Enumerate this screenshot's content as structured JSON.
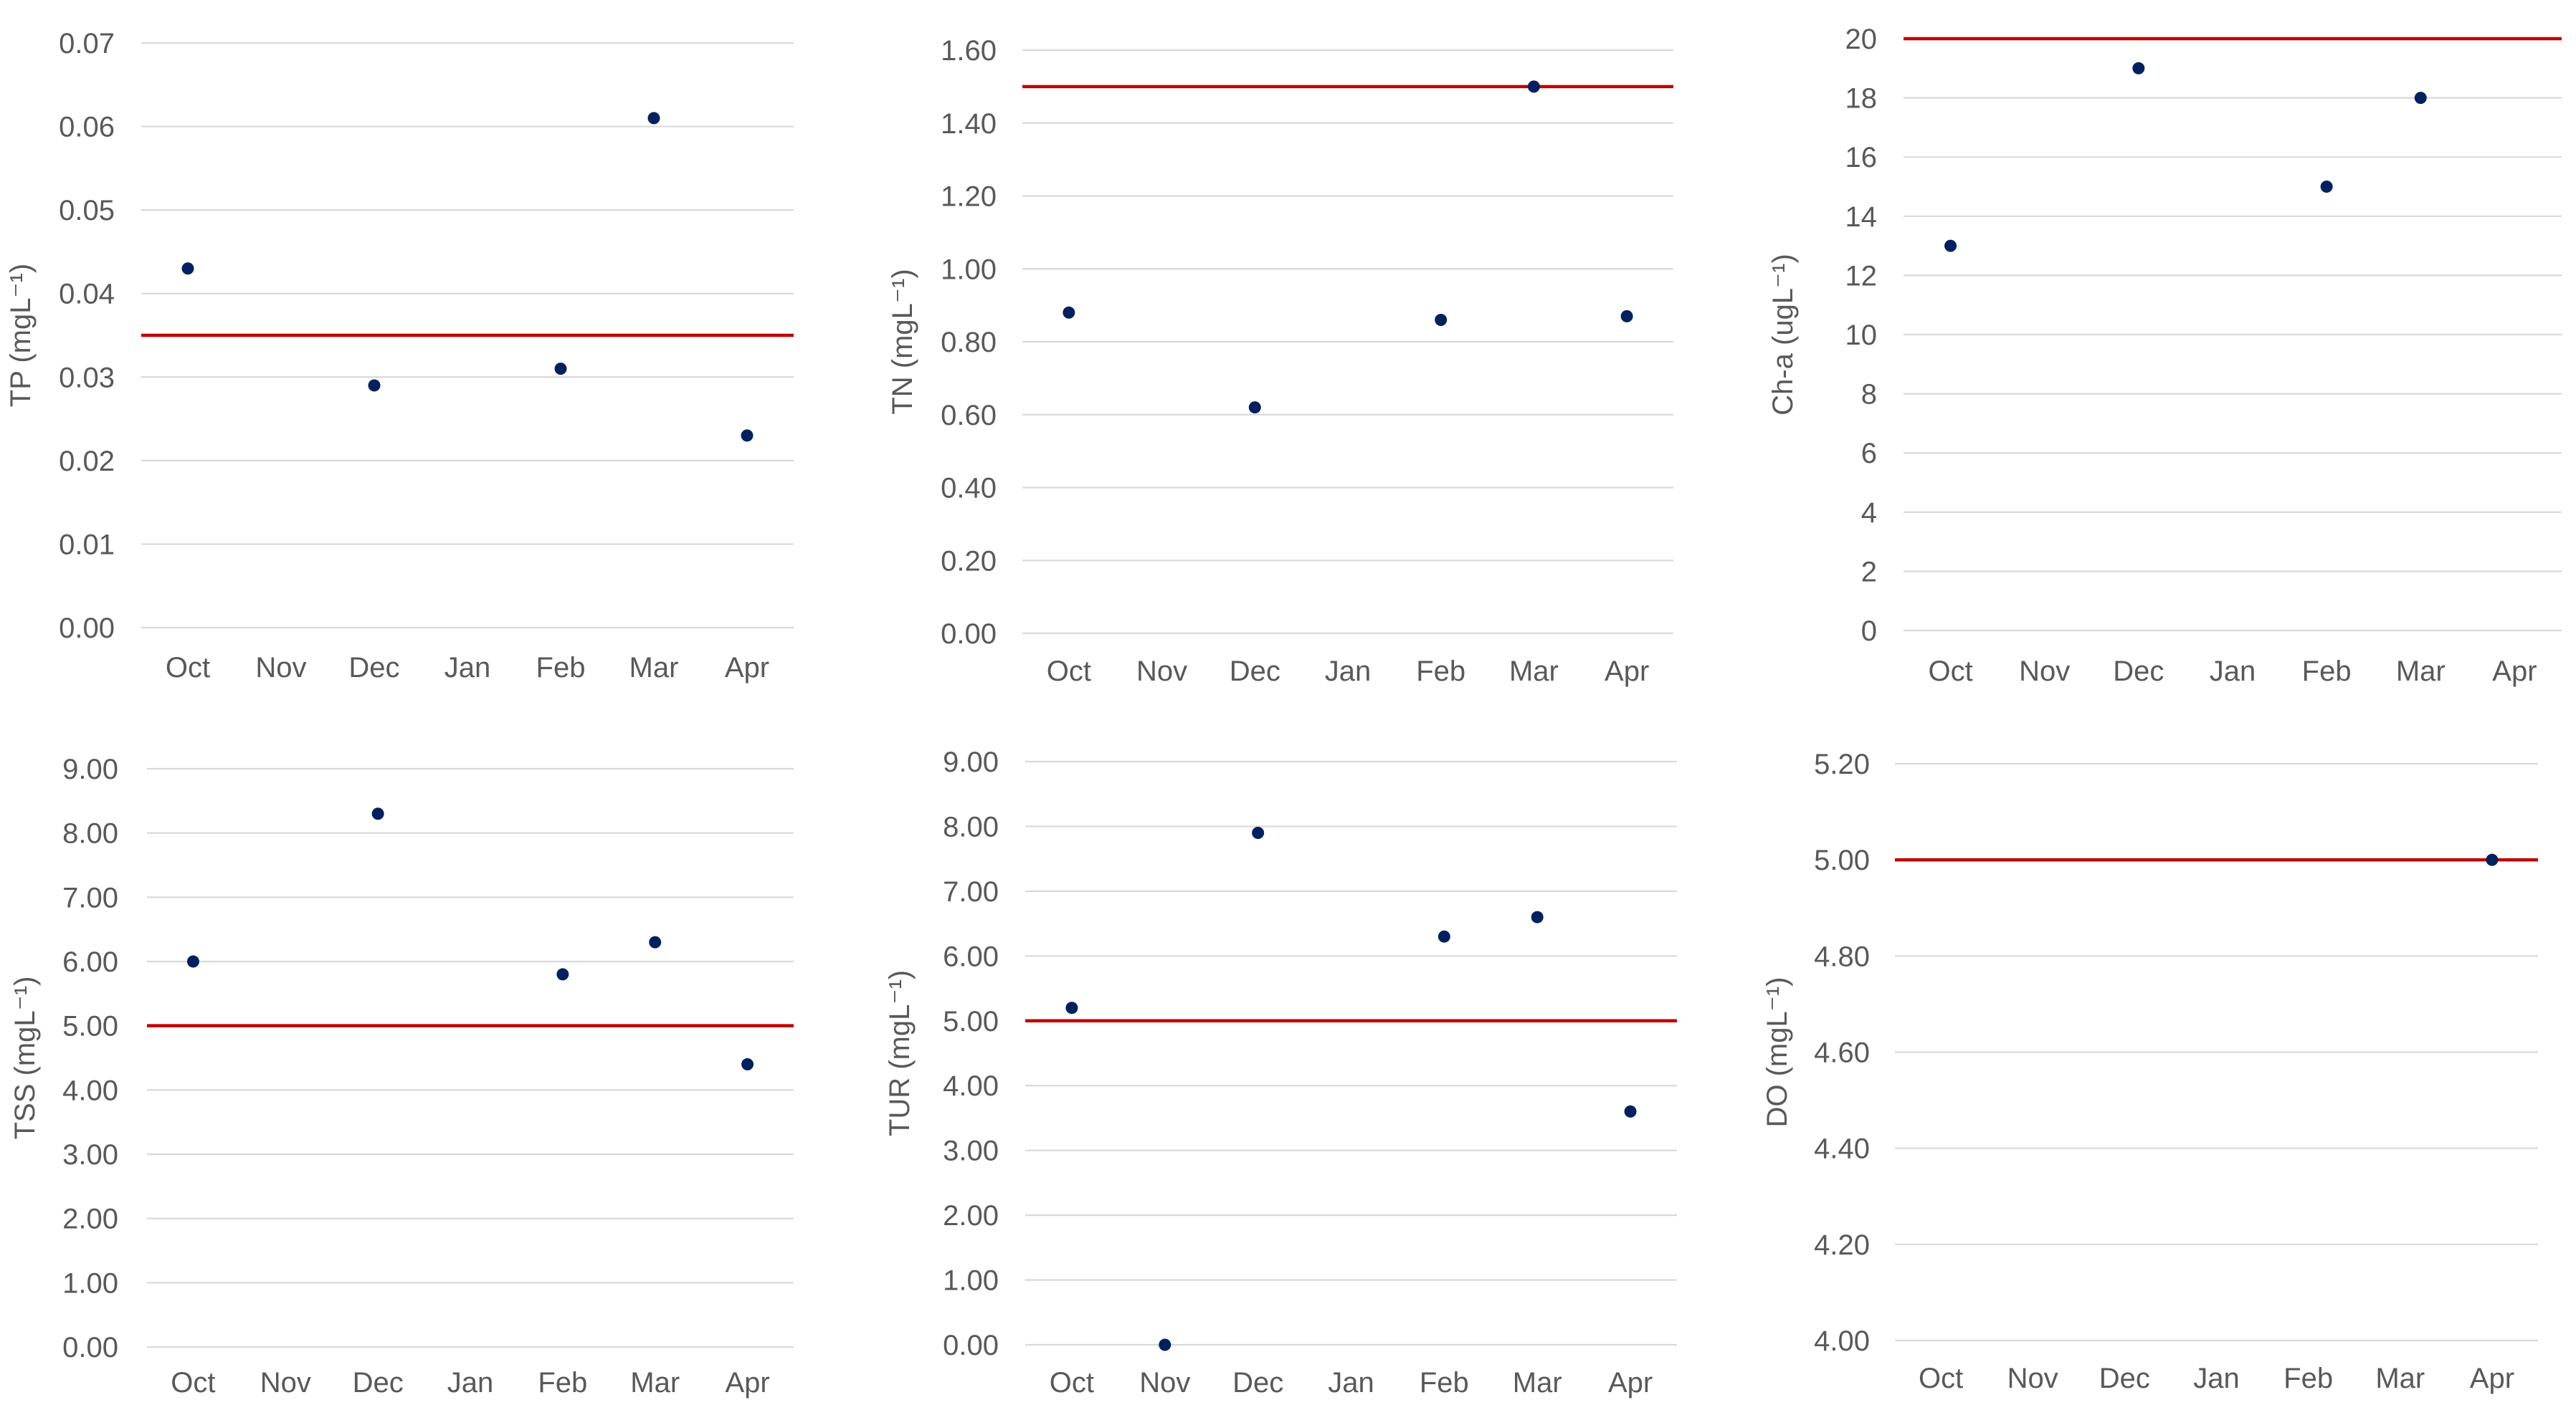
{
  "chart_data": [
    {
      "type": "scatter",
      "ylabel": "TP (mgL⁻¹)",
      "categories": [
        "Oct",
        "Nov",
        "Dec",
        "Jan",
        "Feb",
        "Mar",
        "Apr"
      ],
      "yticks": [
        "0.00",
        "0.01",
        "0.02",
        "0.03",
        "0.04",
        "0.05",
        "0.06",
        "0.07"
      ],
      "ylim": [
        0,
        0.07
      ],
      "values": [
        0.043,
        null,
        0.029,
        null,
        0.031,
        0.061,
        0.023
      ],
      "reference_line": 0.035,
      "colors": {
        "points": "#002060",
        "reference": "#c00000"
      }
    },
    {
      "type": "scatter",
      "ylabel": "TN (mgL⁻¹)",
      "categories": [
        "Oct",
        "Nov",
        "Dec",
        "Jan",
        "Feb",
        "Mar",
        "Apr"
      ],
      "yticks": [
        "0.00",
        "0.20",
        "0.40",
        "0.60",
        "0.80",
        "1.00",
        "1.20",
        "1.40",
        "1.60"
      ],
      "ylim": [
        0,
        1.6
      ],
      "values": [
        0.88,
        null,
        0.62,
        null,
        0.86,
        1.5,
        0.87
      ],
      "reference_line": 1.5,
      "colors": {
        "points": "#002060",
        "reference": "#c00000"
      }
    },
    {
      "type": "scatter",
      "ylabel": "Ch-a (ugL⁻¹)",
      "categories": [
        "Oct",
        "Nov",
        "Dec",
        "Jan",
        "Feb",
        "Mar",
        "Apr"
      ],
      "yticks": [
        "0",
        "2",
        "4",
        "6",
        "8",
        "10",
        "12",
        "14",
        "16",
        "18",
        "20"
      ],
      "ylim": [
        0,
        20
      ],
      "values": [
        13,
        null,
        19,
        null,
        15,
        18,
        null
      ],
      "reference_line": 20,
      "colors": {
        "points": "#002060",
        "reference": "#c00000"
      }
    },
    {
      "type": "scatter",
      "ylabel": "TSS (mgL⁻¹)",
      "categories": [
        "Oct",
        "Nov",
        "Dec",
        "Jan",
        "Feb",
        "Mar",
        "Apr"
      ],
      "yticks": [
        "0.00",
        "1.00",
        "2.00",
        "3.00",
        "4.00",
        "5.00",
        "6.00",
        "7.00",
        "8.00",
        "9.00"
      ],
      "ylim": [
        0,
        9
      ],
      "values": [
        6.0,
        null,
        8.3,
        null,
        5.8,
        6.3,
        4.4
      ],
      "reference_line": 5.0,
      "colors": {
        "points": "#002060",
        "reference": "#c00000"
      }
    },
    {
      "type": "scatter",
      "ylabel": "TUR (mgL⁻¹)",
      "categories": [
        "Oct",
        "Nov",
        "Dec",
        "Jan",
        "Feb",
        "Mar",
        "Apr"
      ],
      "yticks": [
        "0.00",
        "1.00",
        "2.00",
        "3.00",
        "4.00",
        "5.00",
        "6.00",
        "7.00",
        "8.00",
        "9.00"
      ],
      "ylim": [
        0,
        9
      ],
      "values": [
        5.2,
        0.0,
        7.9,
        null,
        6.3,
        6.6,
        3.6
      ],
      "reference_line": 5.0,
      "colors": {
        "points": "#002060",
        "reference": "#c00000"
      }
    },
    {
      "type": "scatter",
      "ylabel": "DO (mgL⁻¹)",
      "categories": [
        "Oct",
        "Nov",
        "Dec",
        "Jan",
        "Feb",
        "Mar",
        "Apr"
      ],
      "yticks": [
        "4.00",
        "4.20",
        "4.40",
        "4.60",
        "4.80",
        "5.00",
        "5.20"
      ],
      "ylim": [
        4.0,
        5.2
      ],
      "values": [
        null,
        null,
        null,
        null,
        null,
        null,
        5.0
      ],
      "reference_line": 5.0,
      "colors": {
        "points": "#002060",
        "reference": "#c00000"
      }
    }
  ]
}
